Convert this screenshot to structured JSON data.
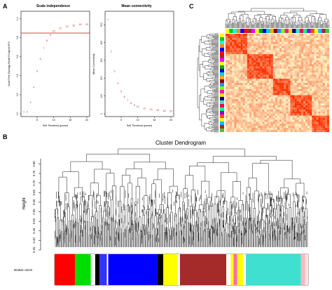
{
  "panels": {
    "a": {
      "letter": "A",
      "left_plot": {
        "title": "Scale independence",
        "xlabel": "Soft Threshold (power)",
        "ylabel": "Scale Free Topology Model Fit,signed R^2",
        "x_ticks": [
          "5",
          "10",
          "15",
          "20"
        ],
        "y_ticks": [
          "0.0",
          "0.2",
          "0.4",
          "0.6",
          "0.8",
          "1.0"
        ],
        "threshold_color": "#d62728"
      },
      "right_plot": {
        "title": "Mean connectivity",
        "xlabel": "Soft Threshold (power)",
        "ylabel": "Mean Connectivity",
        "x_ticks": [
          "5",
          "10",
          "15",
          "20"
        ],
        "y_ticks": [
          "0",
          "100",
          "200",
          "300",
          "400",
          "500"
        ]
      }
    },
    "b": {
      "letter": "B",
      "title": "Cluster Dendrogram",
      "ylabel": "Height",
      "y_ticks": [
        "0.35",
        "0.40",
        "0.45",
        "0.50",
        "0.55",
        "0.60",
        "0.65",
        "0.70",
        "0.75",
        "0.80"
      ],
      "module_label": "Module colors"
    },
    "c": {
      "letter": "C"
    }
  },
  "chart_data": [
    {
      "type": "scatter",
      "title": "Scale independence",
      "xlabel": "Soft Threshold (power)",
      "ylabel": "Scale Free Topology Model Fit,signed R^2",
      "xlim": [
        1,
        20
      ],
      "ylim": [
        0,
        1.05
      ],
      "x": [
        1,
        2,
        3,
        4,
        5,
        6,
        7,
        8,
        9,
        10,
        12,
        14,
        16,
        18,
        20
      ],
      "y": [
        0.02,
        0.02,
        0.12,
        0.28,
        0.45,
        0.58,
        0.69,
        0.77,
        0.83,
        0.87,
        0.9,
        0.92,
        0.93,
        0.94,
        0.94
      ],
      "point_labels": [
        "1",
        "2",
        "3",
        "4",
        "5",
        "6",
        "7",
        "8",
        "9",
        "10",
        "12",
        "14",
        "16",
        "18",
        "20"
      ],
      "reference_line": 0.85
    },
    {
      "type": "scatter",
      "title": "Mean connectivity",
      "xlabel": "Soft Threshold (power)",
      "ylabel": "Mean Connectivity",
      "xlim": [
        1,
        20
      ],
      "ylim": [
        0,
        560
      ],
      "x": [
        1,
        2,
        3,
        4,
        5,
        6,
        7,
        8,
        9,
        10,
        12,
        14,
        16,
        18,
        20
      ],
      "y": [
        530,
        350,
        240,
        170,
        125,
        95,
        75,
        60,
        48,
        40,
        30,
        24,
        20,
        17,
        15
      ],
      "point_labels": [
        "1",
        "2",
        "3",
        "4",
        "5",
        "6",
        "7",
        "8",
        "9",
        "10",
        "12",
        "14",
        "16",
        "18",
        "20"
      ]
    }
  ],
  "module_colors": [
    "#ff0000",
    "#00dd00",
    "#ffffff",
    "#000000",
    "#3333ff",
    "#ffffff",
    "#0000ff",
    "#000000",
    "#ffff00",
    "#ffffff",
    "#a52a2a",
    "#ffffff",
    "#ffff00",
    "#ff69b4",
    "#ffff00",
    "#ffffff",
    "#40e0d0",
    "#ffb6c1",
    "#ffe4e1"
  ],
  "module_widths": [
    28,
    22,
    6,
    6,
    10,
    2,
    68,
    8,
    20,
    3,
    64,
    6,
    4,
    5,
    8,
    4,
    76,
    6,
    4
  ],
  "side_colors": [
    "#ffff00",
    "#00cc00",
    "#00ffff",
    "#ff8c00",
    "#0000ff",
    "#ff0000",
    "#a52a2a",
    "#ff00ff",
    "#ffff00",
    "#00aa00",
    "#0000cd",
    "#00ced1",
    "#ffa500",
    "#8b0000",
    "#1e90ff",
    "#7cfc00",
    "#ff1493",
    "#ffd700",
    "#000080",
    "#40e0d0",
    "#dc143c",
    "#00ff7f",
    "#9400d3",
    "#ff4500",
    "#ffff00",
    "#00bfff",
    "#b22222",
    "#32cd32"
  ]
}
